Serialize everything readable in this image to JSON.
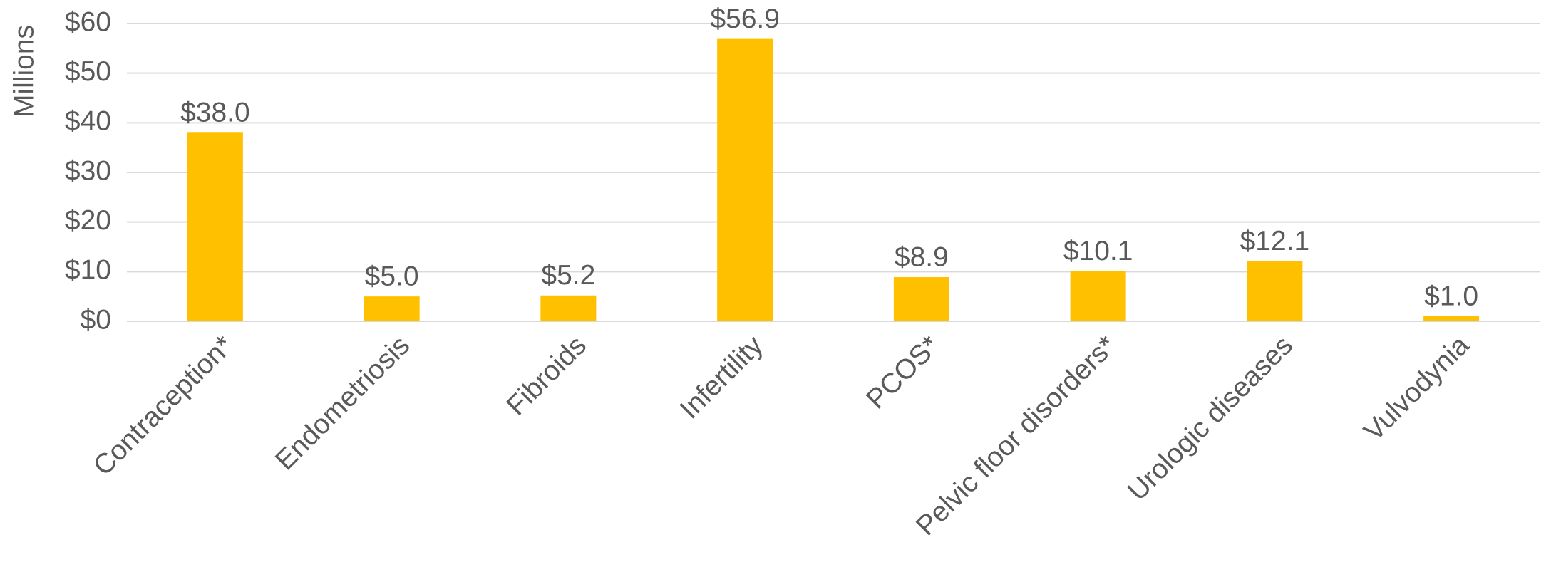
{
  "chart_data": {
    "type": "bar",
    "y_axis_label": "Millions",
    "categories": [
      "Contraception*",
      "Endometriosis",
      "Fibroids",
      "Infertility",
      "PCOS*",
      "Pelvic floor disorders*",
      "Urologic diseases",
      "Vulvodynia"
    ],
    "values": [
      38.0,
      5.0,
      5.2,
      56.9,
      8.9,
      10.1,
      12.1,
      1.0
    ],
    "value_labels": [
      "$38.0",
      "$5.0",
      "$5.2",
      "$56.9",
      "$8.9",
      "$10.1",
      "$12.1",
      "$1.0"
    ],
    "color": "#ffc000",
    "ylim": [
      0,
      60
    ],
    "yticks": [
      {
        "value": 0,
        "label": "$0"
      },
      {
        "value": 10,
        "label": "$10"
      },
      {
        "value": 20,
        "label": "$20"
      },
      {
        "value": 30,
        "label": "$30"
      },
      {
        "value": 40,
        "label": "$40"
      },
      {
        "value": 50,
        "label": "$50"
      },
      {
        "value": 60,
        "label": "$60"
      }
    ],
    "grid": true
  }
}
